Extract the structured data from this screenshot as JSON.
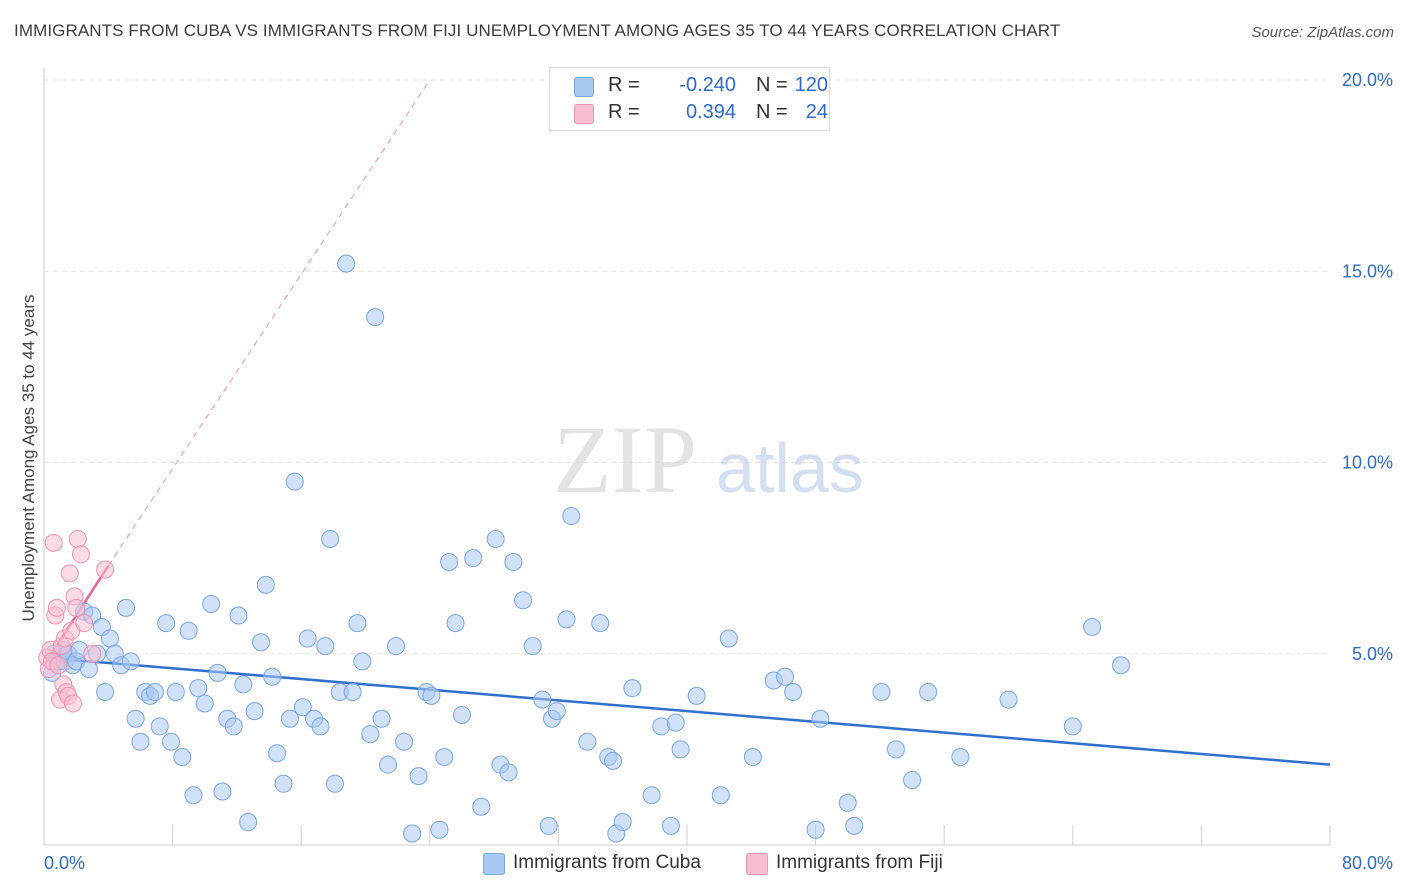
{
  "title": "IMMIGRANTS FROM CUBA VS IMMIGRANTS FROM FIJI UNEMPLOYMENT AMONG AGES 35 TO 44 YEARS CORRELATION CHART",
  "source": "Source: ZipAtlas.com",
  "watermark": {
    "zip": "ZIP",
    "atlas": "atlas"
  },
  "legend": {
    "cuba": {
      "r_label": "R =",
      "r_value": "-0.240",
      "n_label": "N =",
      "n_value": "120"
    },
    "fiji": {
      "r_label": "R =",
      "r_value": "0.394",
      "n_label": "N =",
      "n_value": "24"
    }
  },
  "bottom_legend": {
    "cuba": "Immigrants from Cuba",
    "fiji": "Immigrants from Fiji"
  },
  "colors": {
    "cuba_fill": "#a9c9f2",
    "cuba_stroke": "#7aa6e0",
    "cuba_line": "#2f6fd0",
    "fiji_fill": "#f7bdd0",
    "fiji_stroke": "#ef94b3",
    "fiji_line": "#e8658f",
    "tick_label": "#2e6bc8",
    "grid": "#e3e3e3"
  },
  "chart_data": {
    "type": "scatter",
    "title": "IMMIGRANTS FROM CUBA VS IMMIGRANTS FROM FIJI UNEMPLOYMENT AMONG AGES 35 TO 44 YEARS CORRELATION CHART",
    "xlabel": "",
    "ylabel": "Unemployment Among Ages 35 to 44 years",
    "xlim": [
      0,
      80
    ],
    "ylim": [
      0,
      20
    ],
    "x_tick_labels": [
      "0.0%",
      "80.0%"
    ],
    "y_ticks": [
      5,
      10,
      15,
      20
    ],
    "y_tick_labels": [
      "5.0%",
      "10.0%",
      "15.0%",
      "20.0%"
    ],
    "grid": true,
    "legend_position": "top-center",
    "series": [
      {
        "name": "Immigrants from Cuba",
        "trend": {
          "x": [
            0,
            80
          ],
          "y": [
            4.9,
            2.1
          ],
          "style": "solid"
        },
        "points": [
          [
            0.5,
            4.5
          ],
          [
            0.6,
            5.0
          ],
          [
            0.8,
            4.8
          ],
          [
            1.0,
            4.8
          ],
          [
            1.2,
            5.1
          ],
          [
            1.3,
            4.8
          ],
          [
            1.5,
            5.0
          ],
          [
            1.8,
            4.7
          ],
          [
            2.0,
            4.8
          ],
          [
            2.2,
            5.1
          ],
          [
            2.5,
            6.1
          ],
          [
            2.8,
            4.6
          ],
          [
            3.0,
            6.0
          ],
          [
            3.3,
            5.0
          ],
          [
            3.6,
            5.7
          ],
          [
            3.8,
            4.0
          ],
          [
            4.1,
            5.4
          ],
          [
            4.4,
            5.0
          ],
          [
            4.8,
            4.7
          ],
          [
            5.1,
            6.2
          ],
          [
            5.4,
            4.8
          ],
          [
            5.7,
            3.3
          ],
          [
            6.0,
            2.7
          ],
          [
            6.3,
            4.0
          ],
          [
            6.6,
            3.9
          ],
          [
            6.9,
            4.0
          ],
          [
            7.2,
            3.1
          ],
          [
            7.6,
            5.8
          ],
          [
            7.9,
            2.7
          ],
          [
            8.2,
            4.0
          ],
          [
            8.6,
            2.3
          ],
          [
            9.0,
            5.6
          ],
          [
            9.3,
            1.3
          ],
          [
            9.6,
            4.1
          ],
          [
            10.0,
            3.7
          ],
          [
            10.4,
            6.3
          ],
          [
            10.8,
            4.5
          ],
          [
            11.1,
            1.4
          ],
          [
            11.4,
            3.3
          ],
          [
            11.8,
            3.1
          ],
          [
            12.1,
            6.0
          ],
          [
            12.4,
            4.2
          ],
          [
            12.7,
            0.6
          ],
          [
            13.1,
            3.5
          ],
          [
            13.5,
            5.3
          ],
          [
            13.8,
            6.8
          ],
          [
            14.2,
            4.4
          ],
          [
            14.5,
            2.4
          ],
          [
            14.9,
            1.6
          ],
          [
            15.3,
            3.3
          ],
          [
            15.6,
            9.5
          ],
          [
            16.1,
            3.6
          ],
          [
            16.4,
            5.4
          ],
          [
            16.8,
            3.3
          ],
          [
            17.2,
            3.1
          ],
          [
            17.5,
            5.2
          ],
          [
            17.8,
            8.0
          ],
          [
            18.1,
            1.6
          ],
          [
            18.4,
            4.0
          ],
          [
            18.8,
            15.2
          ],
          [
            19.2,
            4.0
          ],
          [
            19.5,
            5.8
          ],
          [
            19.8,
            4.8
          ],
          [
            20.3,
            2.9
          ],
          [
            20.6,
            13.8
          ],
          [
            21.0,
            3.3
          ],
          [
            21.4,
            2.1
          ],
          [
            21.9,
            5.2
          ],
          [
            22.4,
            2.7
          ],
          [
            22.9,
            0.3
          ],
          [
            23.3,
            1.8
          ],
          [
            23.8,
            4.0
          ],
          [
            24.1,
            3.9
          ],
          [
            24.6,
            0.4
          ],
          [
            24.9,
            2.3
          ],
          [
            25.2,
            7.4
          ],
          [
            25.6,
            5.8
          ],
          [
            26.0,
            3.4
          ],
          [
            26.7,
            7.5
          ],
          [
            27.2,
            1.0
          ],
          [
            28.1,
            8.0
          ],
          [
            28.4,
            2.1
          ],
          [
            28.9,
            1.9
          ],
          [
            29.2,
            7.4
          ],
          [
            29.8,
            6.4
          ],
          [
            30.4,
            5.2
          ],
          [
            31.0,
            3.8
          ],
          [
            31.4,
            0.5
          ],
          [
            31.6,
            3.3
          ],
          [
            31.9,
            3.5
          ],
          [
            32.5,
            5.9
          ],
          [
            32.8,
            8.6
          ],
          [
            33.8,
            2.7
          ],
          [
            34.6,
            5.8
          ],
          [
            35.1,
            2.3
          ],
          [
            35.4,
            2.2
          ],
          [
            35.6,
            0.3
          ],
          [
            36.0,
            0.6
          ],
          [
            36.6,
            4.1
          ],
          [
            37.8,
            1.3
          ],
          [
            38.4,
            3.1
          ],
          [
            39.0,
            0.5
          ],
          [
            39.3,
            3.2
          ],
          [
            39.6,
            2.5
          ],
          [
            40.6,
            3.9
          ],
          [
            42.1,
            1.3
          ],
          [
            42.6,
            5.4
          ],
          [
            44.1,
            2.3
          ],
          [
            45.4,
            4.3
          ],
          [
            46.1,
            4.4
          ],
          [
            46.6,
            4.0
          ],
          [
            48.0,
            0.4
          ],
          [
            48.3,
            3.3
          ],
          [
            50.0,
            1.1
          ],
          [
            50.4,
            0.5
          ],
          [
            52.1,
            4.0
          ],
          [
            53.0,
            2.5
          ],
          [
            54.0,
            1.7
          ],
          [
            55.0,
            4.0
          ],
          [
            57.0,
            2.3
          ],
          [
            60.0,
            3.8
          ],
          [
            64.0,
            3.1
          ],
          [
            65.2,
            5.7
          ],
          [
            67.0,
            4.7
          ]
        ]
      },
      {
        "name": "Immigrants from Fiji",
        "trend": {
          "x": [
            0,
            4
          ],
          "y": [
            4.7,
            7.3
          ],
          "style": "solid",
          "extrapolated_to": [
            24,
            20
          ],
          "extrapolation_style": "dashed"
        },
        "points": [
          [
            0.2,
            4.9
          ],
          [
            0.3,
            4.6
          ],
          [
            0.4,
            5.1
          ],
          [
            0.5,
            4.8
          ],
          [
            0.6,
            7.9
          ],
          [
            0.7,
            6.0
          ],
          [
            0.8,
            6.2
          ],
          [
            0.9,
            4.7
          ],
          [
            1.0,
            3.8
          ],
          [
            1.1,
            5.2
          ],
          [
            1.2,
            4.2
          ],
          [
            1.3,
            5.4
          ],
          [
            1.4,
            4.0
          ],
          [
            1.5,
            3.9
          ],
          [
            1.6,
            7.1
          ],
          [
            1.7,
            5.6
          ],
          [
            1.8,
            3.7
          ],
          [
            1.9,
            6.5
          ],
          [
            2.0,
            6.2
          ],
          [
            2.1,
            8.0
          ],
          [
            2.3,
            7.6
          ],
          [
            2.5,
            5.8
          ],
          [
            3.0,
            5.0
          ],
          [
            3.8,
            7.2
          ]
        ]
      }
    ]
  }
}
